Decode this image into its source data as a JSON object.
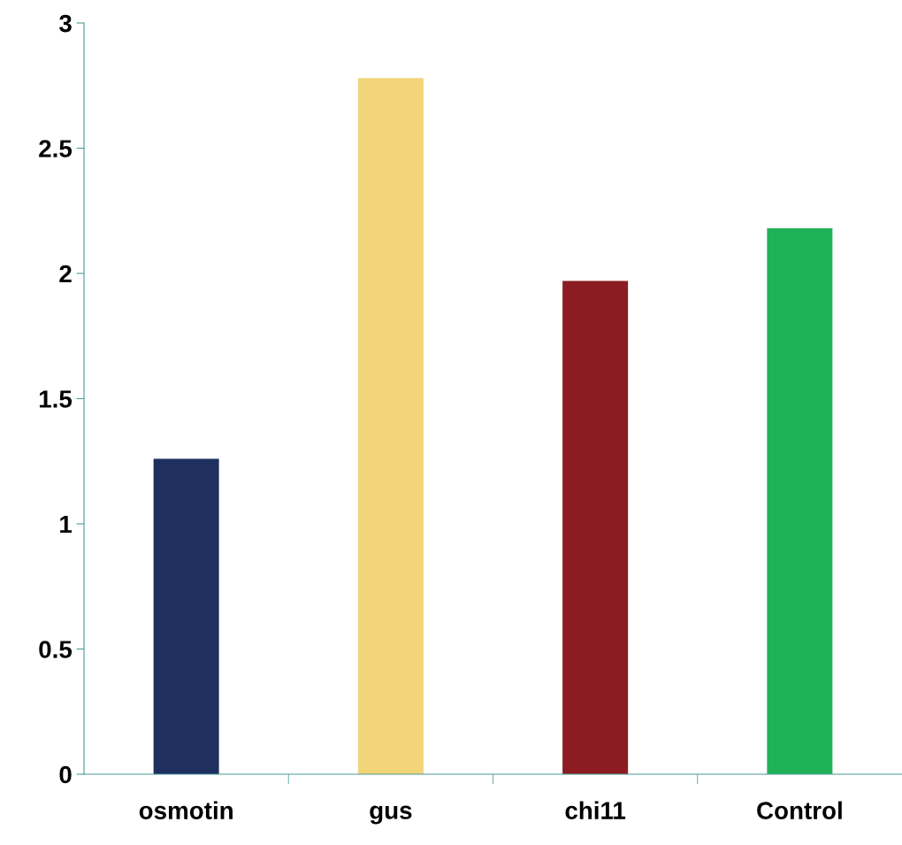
{
  "chart_data": {
    "type": "bar",
    "categories": [
      "osmotin",
      "gus",
      "chi11",
      "Control"
    ],
    "values": [
      1.26,
      2.78,
      1.97,
      2.18
    ],
    "colors": [
      "#1f2f5e",
      "#f2d479",
      "#8a1c22",
      "#1fb257"
    ],
    "ylim": [
      0,
      3
    ],
    "yticks": [
      0,
      0.5,
      1,
      1.5,
      2,
      2.5,
      3
    ],
    "grid": false
  }
}
